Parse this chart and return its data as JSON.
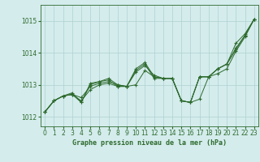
{
  "xlabel": "Graphe pression niveau de la mer (hPa)",
  "background_color": "#d4ecec",
  "grid_color": "#b0d0d0",
  "line_color": "#2d6a2d",
  "marker_color": "#2d6a2d",
  "xlim": [
    -0.5,
    23.5
  ],
  "ylim": [
    1011.7,
    1015.5
  ],
  "yticks": [
    1012,
    1013,
    1014,
    1015
  ],
  "xticks": [
    0,
    1,
    2,
    3,
    4,
    5,
    6,
    7,
    8,
    9,
    10,
    11,
    12,
    13,
    14,
    15,
    16,
    17,
    18,
    19,
    20,
    21,
    22,
    23
  ],
  "series": [
    [
      1012.15,
      1012.5,
      1012.65,
      1012.7,
      1012.5,
      1012.85,
      1013.0,
      1013.05,
      1012.95,
      1012.95,
      1013.0,
      1013.45,
      1013.25,
      1013.2,
      1013.2,
      1012.5,
      1012.45,
      1012.55,
      1013.25,
      1013.35,
      1013.5,
      1014.05,
      1014.5,
      1015.05
    ],
    [
      1012.15,
      1012.5,
      1012.65,
      1012.7,
      1012.45,
      1013.05,
      1013.1,
      1013.15,
      1012.95,
      1012.95,
      1013.4,
      1013.6,
      1013.3,
      1013.2,
      1013.2,
      1012.5,
      1012.45,
      1013.25,
      1013.25,
      1013.5,
      1013.65,
      1014.1,
      1014.55,
      1015.05
    ],
    [
      1012.15,
      1012.5,
      1012.65,
      1012.75,
      1012.45,
      1013.0,
      1013.1,
      1013.2,
      1013.0,
      1012.95,
      1013.45,
      1013.65,
      1013.2,
      1013.2,
      1013.2,
      1012.5,
      1012.45,
      1013.25,
      1013.25,
      1013.5,
      1013.65,
      1014.3,
      1014.6,
      1015.05
    ],
    [
      1012.15,
      1012.5,
      1012.65,
      1012.7,
      1012.6,
      1012.95,
      1013.05,
      1013.1,
      1013.0,
      1012.95,
      1013.5,
      1013.7,
      1013.25,
      1013.2,
      1013.2,
      1012.5,
      1012.45,
      1013.25,
      1013.25,
      1013.5,
      1013.65,
      1014.15,
      1014.55,
      1015.05
    ]
  ]
}
